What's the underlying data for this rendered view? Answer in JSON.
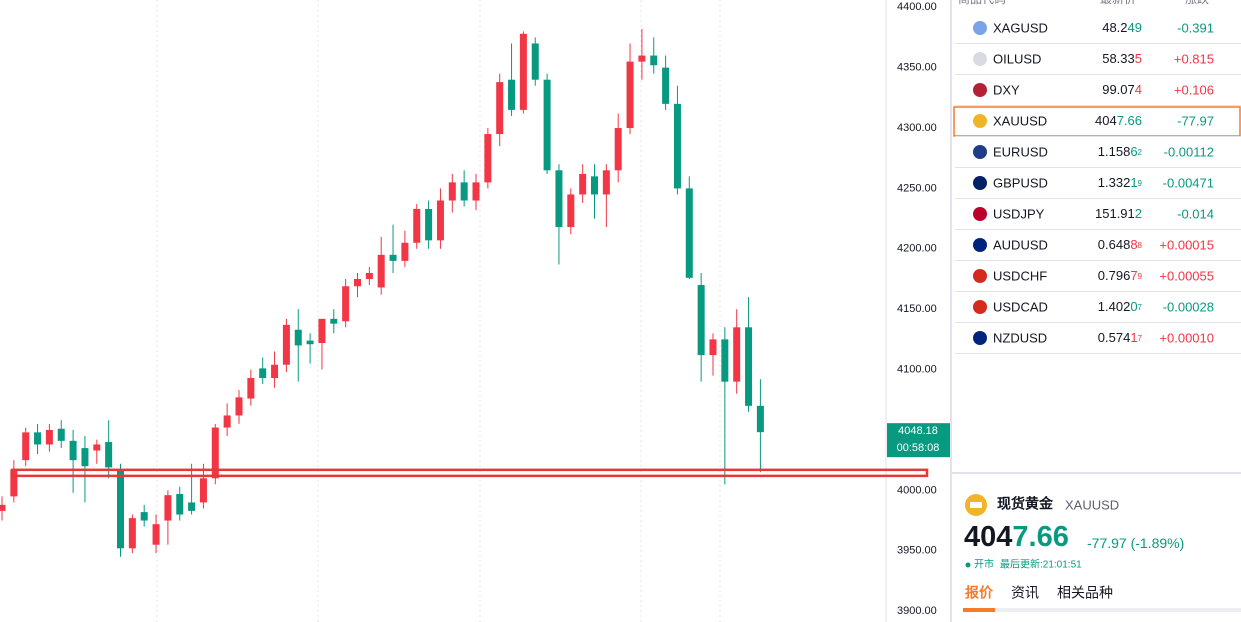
{
  "chart": {
    "type": "candlestick",
    "ylim": [
      3891,
      4406
    ],
    "yticks": [
      {
        "value": 4400,
        "label": "4400.00"
      },
      {
        "value": 4350,
        "label": "4350.00"
      },
      {
        "value": 4300,
        "label": "4300.00"
      },
      {
        "value": 4250,
        "label": "4250.00"
      },
      {
        "value": 4200,
        "label": "4200.00"
      },
      {
        "value": 4150,
        "label": "4150.00"
      },
      {
        "value": 4100,
        "label": "4100.00"
      },
      {
        "value": 4050,
        "label": "4050.00"
      },
      {
        "value": 4000,
        "label": "4000.00"
      },
      {
        "value": 3950,
        "label": "3950.00"
      },
      {
        "value": 3900,
        "label": "3900.00"
      }
    ],
    "up_color": "#f23645",
    "down_color": "#089981",
    "open": [
      3983,
      3995,
      4025,
      4048,
      4038,
      4051,
      4041,
      4035,
      4033,
      4040,
      4017,
      3952,
      3982,
      3955,
      3975,
      3997,
      3990,
      3990,
      4010,
      4052,
      4062,
      4076,
      4101,
      4093,
      4104,
      4133,
      4124,
      4122,
      4142,
      4140,
      4169,
      4175,
      4168,
      4195,
      4190,
      4205,
      4233,
      4207,
      4240,
      4255,
      4240,
      4255,
      4295,
      4340,
      4315,
      4370,
      4340,
      4265,
      4218,
      4245,
      4260,
      4245,
      4265,
      4300,
      4355,
      4360,
      4350,
      4320,
      4250,
      4170,
      4112,
      4125,
      4090,
      4135,
      4070
    ],
    "high": [
      3995,
      4025,
      4052,
      4055,
      4055,
      4058,
      4050,
      4045,
      4042,
      4058,
      4022,
      3980,
      3988,
      3980,
      4000,
      4003,
      4022,
      4022,
      4055,
      4072,
      4083,
      4100,
      4110,
      4115,
      4142,
      4150,
      4130,
      4142,
      4150,
      4175,
      4180,
      4185,
      4210,
      4220,
      4215,
      4237,
      4240,
      4250,
      4262,
      4265,
      4262,
      4300,
      4345,
      4370,
      4380,
      4375,
      4345,
      4270,
      4250,
      4270,
      4270,
      4270,
      4312,
      4370,
      4382,
      4375,
      4360,
      4335,
      4260,
      4180,
      4130,
      4135,
      4150,
      4160,
      4092
    ],
    "low": [
      3975,
      3990,
      4020,
      4030,
      4032,
      4035,
      3998,
      3990,
      4022,
      4010,
      3945,
      3948,
      3970,
      3948,
      3955,
      3975,
      3980,
      3985,
      4005,
      4045,
      4055,
      4070,
      4088,
      4085,
      4098,
      4090,
      4105,
      4100,
      4130,
      4135,
      4160,
      4170,
      4162,
      4180,
      4185,
      4200,
      4200,
      4200,
      4230,
      4235,
      4232,
      4250,
      4285,
      4310,
      4312,
      4335,
      4262,
      4187,
      4212,
      4238,
      4225,
      4218,
      4255,
      4295,
      4340,
      4345,
      4315,
      4245,
      4175,
      4090,
      4095,
      4005,
      4080,
      4065,
      4015
    ],
    "close": [
      3988,
      4017,
      4048,
      4038,
      4050,
      4041,
      4025,
      4020,
      4038,
      4019,
      3952,
      3977,
      3975,
      3972,
      3996,
      3980,
      3983,
      4010,
      4052,
      4062,
      4077,
      4093,
      4093,
      4104,
      4137,
      4120,
      4121,
      4142,
      4138,
      4169,
      4175,
      4180,
      4195,
      4190,
      4205,
      4233,
      4207,
      4240,
      4255,
      4240,
      4255,
      4295,
      4338,
      4315,
      4378,
      4340,
      4265,
      4218,
      4245,
      4262,
      4245,
      4265,
      4300,
      4355,
      4360,
      4352,
      4320,
      4250,
      4176,
      4112,
      4125,
      4090,
      4135,
      4070,
      4048.18
    ],
    "highlight_band": [
      4012,
      4017
    ],
    "price_tag": 4048.18,
    "timer": "00:58:08"
  },
  "watchlist": {
    "headers": [
      "商品代码",
      "最新价",
      "涨跌"
    ],
    "rows": [
      {
        "symbol": "XAGUSD",
        "price": [
          "48.2",
          "49"
        ],
        "change": "-0.391"
      },
      {
        "symbol": "OILUSD",
        "price": [
          "58.33",
          "5"
        ],
        "change": "+0.815"
      },
      {
        "symbol": "DXY",
        "price": [
          "99.07",
          "4"
        ],
        "change": "+0.106"
      },
      {
        "symbol": "XAUUSD",
        "price": [
          "404",
          "7.66"
        ],
        "change": "-77.97"
      },
      {
        "symbol": "EURUSD",
        "price": [
          "1.158",
          "6",
          "2"
        ],
        "change": "-0.00112"
      },
      {
        "symbol": "GBPUSD",
        "price": [
          "1.332",
          "1",
          "9"
        ],
        "change": "-0.00471"
      },
      {
        "symbol": "USDJPY",
        "price": [
          "151.91",
          "2"
        ],
        "change": "-0.014"
      },
      {
        "symbol": "AUDUSD",
        "price": [
          "0.648",
          "8",
          "8"
        ],
        "change": "+0.00015"
      },
      {
        "symbol": "USDCHF",
        "price": [
          "0.796",
          "7",
          "9"
        ],
        "change": "+0.00055"
      },
      {
        "symbol": "USDCAD",
        "price": [
          "1.402",
          "0",
          "7"
        ],
        "change": "-0.00028"
      },
      {
        "symbol": "NZDUSD",
        "price": [
          "0.574",
          "1",
          "7"
        ],
        "change": "+0.00010"
      }
    ]
  },
  "detail": {
    "name": "现货黄金",
    "symbol": "XAUUSD",
    "price": [
      "404",
      "7.66"
    ],
    "change": "-77.97",
    "change_pct": "(-1.89%)",
    "status": "开市",
    "updated": "最后更新:21:01:51",
    "tabs": [
      "报价",
      "资讯",
      "相关品种"
    ]
  }
}
